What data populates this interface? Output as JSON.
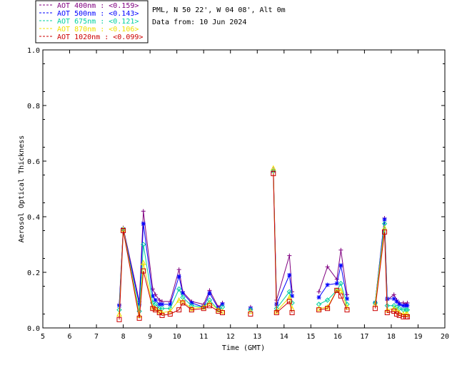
{
  "header": {
    "site_line": "PML, N 50 22', W 04 08', Alt 0m",
    "date_line": "Data from: 10 Jun 2024"
  },
  "chart_data": {
    "type": "scatter",
    "xlabel": "Time (GMT)",
    "ylabel": "Aerosol Optical Thickness",
    "xlim": [
      5,
      20
    ],
    "ylim": [
      0,
      1.0
    ],
    "xticks": [
      5,
      6,
      7,
      8,
      9,
      10,
      11,
      12,
      13,
      14,
      15,
      16,
      17,
      18,
      19,
      20
    ],
    "yticks": [
      0.0,
      0.2,
      0.4,
      0.6,
      0.8,
      1.0
    ],
    "legend_position": "top-left, outside plot",
    "series": [
      {
        "name": "AOT  400nm : <0.159>",
        "color": "#800080",
        "marker": "plus",
        "x": [
          7.85,
          8.0,
          8.6,
          8.75,
          9.1,
          9.2,
          9.35,
          9.45,
          9.75,
          10.08,
          10.22,
          10.55,
          11.0,
          11.22,
          11.55,
          11.7,
          12.75,
          13.6,
          13.72,
          14.2,
          14.3,
          15.3,
          15.62,
          15.97,
          16.12,
          16.35,
          17.4,
          17.75,
          17.85,
          18.1,
          18.2,
          18.3,
          18.45,
          18.55,
          18.6
        ],
        "y": [
          0.085,
          0.36,
          0.095,
          0.42,
          0.14,
          0.12,
          0.1,
          0.095,
          0.095,
          0.21,
          0.13,
          0.095,
          0.085,
          0.135,
          0.075,
          0.09,
          0.075,
          0.57,
          0.1,
          0.26,
          0.13,
          0.13,
          0.22,
          0.175,
          0.28,
          0.12,
          0.09,
          0.395,
          0.1,
          0.12,
          0.1,
          0.09,
          0.09,
          0.085,
          0.09
        ]
      },
      {
        "name": "AOT  500nm : <0.143>",
        "color": "#0000ff",
        "marker": "asterisk",
        "x": [
          7.85,
          8.0,
          8.6,
          8.75,
          9.1,
          9.2,
          9.35,
          9.45,
          9.75,
          10.08,
          10.22,
          10.55,
          11.0,
          11.22,
          11.55,
          11.7,
          12.75,
          13.6,
          13.72,
          14.2,
          14.3,
          15.3,
          15.62,
          15.97,
          16.12,
          16.35,
          17.4,
          17.75,
          17.85,
          18.1,
          18.2,
          18.3,
          18.45,
          18.55,
          18.6
        ],
        "y": [
          0.08,
          0.355,
          0.085,
          0.375,
          0.115,
          0.1,
          0.085,
          0.085,
          0.085,
          0.185,
          0.125,
          0.09,
          0.075,
          0.125,
          0.07,
          0.085,
          0.07,
          0.565,
          0.085,
          0.19,
          0.115,
          0.11,
          0.155,
          0.16,
          0.225,
          0.105,
          0.09,
          0.39,
          0.105,
          0.105,
          0.095,
          0.085,
          0.08,
          0.08,
          0.08
        ]
      },
      {
        "name": "AOT  675nm : <0.121>",
        "color": "#00d0a0",
        "marker": "diamond",
        "x": [
          7.85,
          8.0,
          8.6,
          8.75,
          9.1,
          9.2,
          9.35,
          9.45,
          9.75,
          10.08,
          10.22,
          10.55,
          11.0,
          11.22,
          11.55,
          11.7,
          12.75,
          13.6,
          13.72,
          14.2,
          14.3,
          15.3,
          15.62,
          15.97,
          16.12,
          16.35,
          17.4,
          17.75,
          17.85,
          18.1,
          18.2,
          18.3,
          18.45,
          18.55,
          18.6
        ],
        "y": [
          0.065,
          0.355,
          0.06,
          0.3,
          0.09,
          0.085,
          0.07,
          0.07,
          0.07,
          0.14,
          0.11,
          0.08,
          0.075,
          0.1,
          0.065,
          0.075,
          0.065,
          0.565,
          0.07,
          0.13,
          0.09,
          0.085,
          0.1,
          0.135,
          0.16,
          0.085,
          0.09,
          0.375,
          0.08,
          0.08,
          0.075,
          0.07,
          0.065,
          0.065,
          0.065
        ]
      },
      {
        "name": "AOT  870nm : <0.106>",
        "color": "#f0e000",
        "marker": "triangle",
        "x": [
          7.85,
          8.0,
          8.6,
          8.75,
          9.1,
          9.2,
          9.35,
          9.45,
          9.75,
          10.08,
          10.22,
          10.55,
          11.0,
          11.22,
          11.55,
          11.7,
          12.75,
          13.6,
          13.72,
          14.2,
          14.3,
          15.3,
          15.62,
          15.97,
          16.12,
          16.35,
          17.4,
          17.75,
          17.85,
          18.1,
          18.2,
          18.3,
          18.45,
          18.55,
          18.6
        ],
        "y": [
          0.05,
          0.355,
          0.045,
          0.235,
          0.075,
          0.07,
          0.06,
          0.055,
          0.06,
          0.1,
          0.095,
          0.07,
          0.075,
          0.09,
          0.065,
          0.06,
          0.06,
          0.575,
          0.06,
          0.11,
          0.07,
          0.07,
          0.075,
          0.135,
          0.135,
          0.075,
          0.085,
          0.36,
          0.065,
          0.07,
          0.065,
          0.055,
          0.05,
          0.05,
          0.05
        ]
      },
      {
        "name": "AOT 1020nm : <0.099>",
        "color": "#cc0000",
        "marker": "square",
        "x": [
          7.85,
          8.0,
          8.6,
          8.75,
          9.1,
          9.2,
          9.35,
          9.45,
          9.75,
          10.08,
          10.22,
          10.55,
          11.0,
          11.22,
          11.55,
          11.7,
          12.75,
          13.6,
          13.72,
          14.2,
          14.3,
          15.3,
          15.62,
          15.97,
          16.12,
          16.35,
          17.4,
          17.75,
          17.85,
          18.1,
          18.2,
          18.3,
          18.45,
          18.55,
          18.6
        ],
        "y": [
          0.03,
          0.35,
          0.035,
          0.205,
          0.07,
          0.065,
          0.055,
          0.045,
          0.05,
          0.065,
          0.09,
          0.065,
          0.07,
          0.08,
          0.06,
          0.055,
          0.05,
          0.555,
          0.055,
          0.095,
          0.055,
          0.065,
          0.07,
          0.135,
          0.115,
          0.065,
          0.07,
          0.345,
          0.055,
          0.06,
          0.05,
          0.045,
          0.04,
          0.04,
          0.04
        ]
      }
    ]
  }
}
